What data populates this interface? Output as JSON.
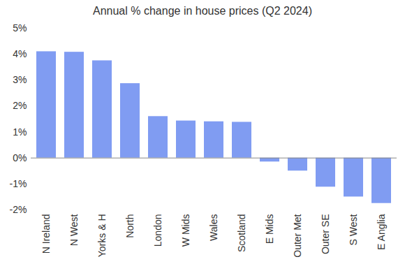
{
  "chart_data": {
    "type": "bar",
    "title": "Annual % change in house prices (Q2 2024)",
    "categories": [
      "N Ireland",
      "N West",
      "Yorks & H",
      "North",
      "London",
      "W Mids",
      "Wales",
      "Scotland",
      "E Mids",
      "Outer Met",
      "Outer SE",
      "S West",
      "E Anglia"
    ],
    "values": [
      4.1,
      4.08,
      3.75,
      2.87,
      1.6,
      1.43,
      1.4,
      1.38,
      -0.15,
      -0.5,
      -1.12,
      -1.5,
      -1.75
    ],
    "color": "#809cf2",
    "ylim": [
      -2,
      5
    ],
    "yticks": [
      {
        "value": -2,
        "label": "-2%"
      },
      {
        "value": -1,
        "label": "-1%"
      },
      {
        "value": 0,
        "label": "0%"
      },
      {
        "value": 1,
        "label": "1%"
      },
      {
        "value": 2,
        "label": "2%"
      },
      {
        "value": 3,
        "label": "3%"
      },
      {
        "value": 4,
        "label": "4%"
      },
      {
        "value": 5,
        "label": "5%"
      }
    ],
    "grid": false
  }
}
